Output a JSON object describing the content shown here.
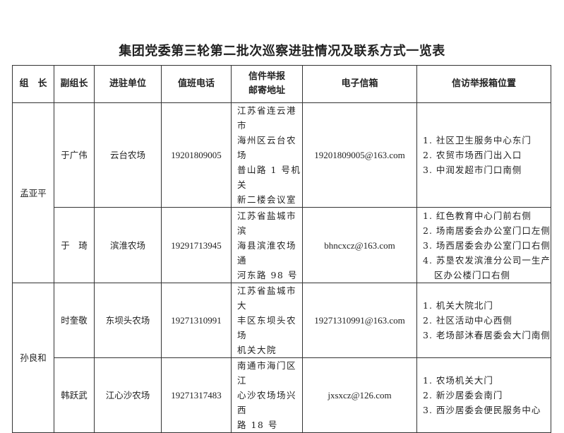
{
  "title": "集团党委第三轮第二批次巡察进驻情况及联系方式一览表",
  "headers": [
    "组　长",
    "副组长",
    "进驻单位",
    "值班电话",
    "信件举报",
    "邮寄地址",
    "电子信箱",
    "信访举报箱位置"
  ],
  "groups": [
    {
      "leader": "孟亚平",
      "rows": [
        {
          "deputy": "于广伟",
          "unit": "云台农场",
          "phone": "19201809005",
          "address": [
            "江苏省连云港市",
            "海州区云台农场",
            "普山路 1 号机关",
            "新二楼会议室"
          ],
          "email": "19201809005@163.com",
          "locations": [
            "1. 社区卫生服务中心东门",
            "2. 农贸市场西门出入口",
            "3. 中润发超市门口南侧"
          ]
        },
        {
          "deputy": "于　琦",
          "unit": "滨淮农场",
          "phone": "19291713945",
          "address": [
            "江苏省盐城市滨",
            "海县滨淮农场通",
            "河东路 98 号"
          ],
          "email": "bhncxcz@163.com",
          "locations": [
            "1. 红色教育中心门前右侧",
            "2. 场南居委会办公室门口左侧",
            "3. 场西居委会办公室门口右侧",
            "4. 苏垦农发滨淮分公司一生产",
            "区办公楼门口右侧"
          ]
        }
      ]
    },
    {
      "leader": "孙良和",
      "rows": [
        {
          "deputy": "时奎敬",
          "unit": "东坝头农场",
          "phone": "19271310991",
          "address": [
            "江苏省盐城市大",
            "丰区东坝头农场",
            "机关大院"
          ],
          "email": "19271310991@163.com",
          "locations": [
            "1. 机关大院北门",
            "2. 社区活动中心西侧",
            "3. 老场部沐春居委会大门南侧"
          ]
        },
        {
          "deputy": "韩跃武",
          "unit": "江心沙农场",
          "phone": "19271317483",
          "address": [
            "南通市海门区江",
            "心沙农场场兴西",
            "路 18 号"
          ],
          "email": "jxsxcz@126.com",
          "locations": [
            "1. 农场机关大门",
            "2. 新沙居委会南门",
            "3. 西沙居委会便民服务中心"
          ]
        }
      ]
    }
  ]
}
